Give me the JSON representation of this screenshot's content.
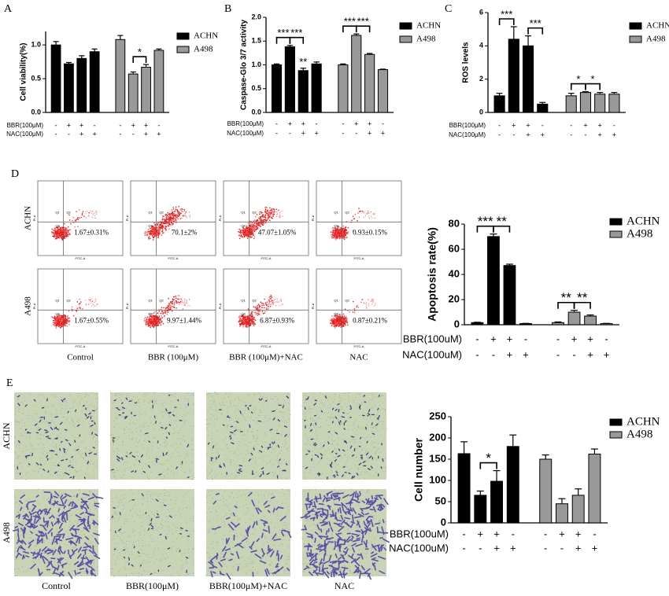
{
  "chart_data": [
    {
      "type": "bar",
      "panel_label": "A",
      "ylabel": "Cell viability(%)",
      "ylim": [
        0,
        1.2
      ],
      "yticks": [
        {
          "value": 0,
          "label": "0.0"
        },
        {
          "value": 0.5,
          "label": "0.5"
        },
        {
          "value": 1,
          "label": "1.0"
        }
      ],
      "legend": "right",
      "series": [
        {
          "name": "ACHN",
          "color": "#000000",
          "values": [
            1.0,
            0.72,
            0.8,
            0.9
          ],
          "errors": [
            0.05,
            0.02,
            0.04,
            0.04
          ]
        },
        {
          "name": "A498",
          "color": "#999999",
          "values": [
            1.08,
            0.57,
            0.67,
            0.92
          ],
          "errors": [
            0.06,
            0.03,
            0.04,
            0.02
          ]
        }
      ],
      "conditions": [
        {
          "label": "BBR(100μM)",
          "signs": [
            "-",
            "+",
            "+",
            "-"
          ]
        },
        {
          "label": "NAC(100μM)",
          "signs": [
            "-",
            "-",
            "+",
            "+"
          ]
        }
      ],
      "significance": [
        {
          "text": "*",
          "series": 1,
          "bars": [
            1,
            2
          ]
        }
      ]
    },
    {
      "type": "bar",
      "panel_label": "B",
      "ylabel": "Caspase-Glo 3/7 activity",
      "ylim": [
        0,
        2
      ],
      "yticks": [
        {
          "value": 0,
          "label": "0.0"
        },
        {
          "value": 0.5,
          "label": "0.5"
        },
        {
          "value": 1,
          "label": "1.0"
        },
        {
          "value": 1.5,
          "label": "1.5"
        },
        {
          "value": 2,
          "label": "2.0"
        }
      ],
      "legend": "right",
      "series": [
        {
          "name": "ACHN",
          "color": "#000000",
          "values": [
            1.0,
            1.38,
            0.88,
            1.02
          ],
          "errors": [
            0.02,
            0.03,
            0.05,
            0.04
          ]
        },
        {
          "name": "A498",
          "color": "#999999",
          "values": [
            1.0,
            1.62,
            1.22,
            0.9
          ],
          "errors": [
            0.02,
            0.03,
            0.02,
            0.01
          ]
        }
      ],
      "conditions": [
        {
          "label": "BBR(100μM)",
          "signs": [
            "-",
            "+",
            "+",
            "-"
          ]
        },
        {
          "label": "NAC(100μM)",
          "signs": [
            "-",
            "-",
            "+",
            "+"
          ]
        }
      ],
      "significance": [
        {
          "text": "***",
          "series": 0,
          "bars": [
            0,
            1
          ]
        },
        {
          "text": "***",
          "series": 0,
          "bars": [
            1,
            2
          ]
        },
        {
          "text": "**",
          "series": 0,
          "bars": [
            2
          ]
        },
        {
          "text": "***",
          "series": 1,
          "bars": [
            0,
            1
          ]
        },
        {
          "text": "***",
          "series": 1,
          "bars": [
            1,
            2
          ]
        }
      ]
    },
    {
      "type": "bar",
      "panel_label": "C",
      "ylabel": "ROS levels",
      "ylim": [
        0,
        6
      ],
      "yticks": [
        0,
        2,
        4,
        6
      ],
      "legend": "right",
      "series": [
        {
          "name": "ACHN",
          "color": "#000000",
          "values": [
            1.0,
            4.4,
            4.0,
            0.5
          ],
          "errors": [
            0.15,
            0.75,
            0.6,
            0.1
          ]
        },
        {
          "name": "A498",
          "color": "#999999",
          "values": [
            1.0,
            1.2,
            1.1,
            1.1
          ],
          "errors": [
            0.15,
            0.05,
            0.1,
            0.1
          ]
        }
      ],
      "conditions": [
        {
          "label": "BBR(100μM)",
          "signs": [
            "-",
            "+",
            "+",
            "-"
          ]
        },
        {
          "label": "NAC(100μM)",
          "signs": [
            "-",
            "-",
            "+",
            "+"
          ]
        }
      ],
      "significance": [
        {
          "text": "***",
          "series": 0,
          "bars": [
            0,
            1
          ]
        },
        {
          "text": "***",
          "series": 0,
          "bars": [
            2,
            3
          ]
        },
        {
          "text": "*",
          "series": 1,
          "bars": [
            0,
            1
          ]
        },
        {
          "text": "*",
          "series": 1,
          "bars": [
            1,
            2
          ]
        }
      ]
    },
    {
      "type": "bar",
      "ylabel": "Apoptosis rate(%)",
      "ylim": [
        0,
        80
      ],
      "yticks": [
        0,
        20,
        40,
        60,
        80
      ],
      "legend": "right",
      "series": [
        {
          "name": "ACHN",
          "color": "#000000",
          "values": [
            1.67,
            70.1,
            47.07,
            0.93
          ],
          "errors": [
            0.31,
            2,
            1.05,
            0.15
          ]
        },
        {
          "name": "A498",
          "color": "#999999",
          "values": [
            1.67,
            9.97,
            6.87,
            0.87
          ],
          "errors": [
            0.55,
            1.44,
            0.93,
            0.21
          ]
        }
      ],
      "conditions": [
        {
          "label": "BBR(100uM)",
          "signs": [
            "-",
            "+",
            "+",
            "-"
          ]
        },
        {
          "label": "NAC(100uM)",
          "signs": [
            "-",
            "-",
            "+",
            "+"
          ]
        }
      ],
      "significance": [
        {
          "text": "***",
          "series": 0,
          "bars": [
            0,
            1
          ]
        },
        {
          "text": "**",
          "series": 0,
          "bars": [
            1,
            2
          ]
        },
        {
          "text": "**",
          "series": 1,
          "bars": [
            0,
            1
          ]
        },
        {
          "text": "**",
          "series": 1,
          "bars": [
            1,
            2
          ]
        }
      ]
    },
    {
      "type": "bar",
      "ylabel": "Cell number",
      "ylim": [
        0,
        250
      ],
      "yticks": [
        0,
        50,
        100,
        150,
        200,
        250
      ],
      "legend": "right",
      "series": [
        {
          "name": "ACHN",
          "color": "#000000",
          "values": [
            163,
            65,
            98,
            180
          ],
          "errors": [
            28,
            10,
            25,
            27
          ]
        },
        {
          "name": "A498",
          "color": "#999999",
          "values": [
            150,
            45,
            65,
            162
          ],
          "errors": [
            10,
            12,
            15,
            12
          ]
        }
      ],
      "conditions": [
        {
          "label": "BBR(100uM)",
          "signs": [
            "-",
            "+",
            "+",
            "-"
          ]
        },
        {
          "label": "NAC(100uM)",
          "signs": [
            "-",
            "-",
            "+",
            "+"
          ]
        }
      ],
      "significance": [
        {
          "text": "*",
          "series": 0,
          "bars": [
            1,
            2
          ]
        }
      ]
    }
  ],
  "flow_cytometry": {
    "panel_label": "D",
    "rows": [
      "ACHN",
      "A498"
    ],
    "columns": [
      "Control",
      "BBR (100μM)",
      "BBR (100μM)+NAC",
      "NAC"
    ],
    "percentages": [
      [
        "1.67±0.31%",
        "70.1±2%",
        "47.07±1.05%",
        "0.93±0.15%"
      ],
      [
        "1.67±0.55%",
        "9.97±1.44%",
        "6.87±0.93%",
        "0.87±0.21%"
      ]
    ],
    "x_axis": "FITC-A",
    "y_axis": "PI-A",
    "quadrants": [
      "Q1",
      "Q2",
      "Q4"
    ]
  },
  "migration_images": {
    "panel_label": "E",
    "rows": [
      "ACHN",
      "A498"
    ],
    "columns": [
      "Control",
      "BBR(100μM)",
      "BBR(100μM)+NAC",
      "NAC"
    ]
  }
}
